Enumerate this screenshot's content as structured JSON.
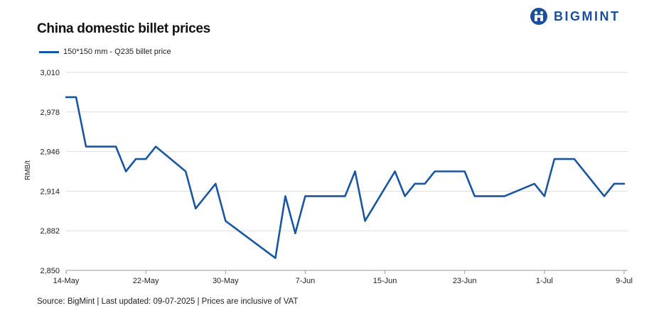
{
  "brand": {
    "name": "BIGMINT",
    "color": "#1a4f9c",
    "icon": "bigmint-logo-icon"
  },
  "footer": {
    "source": "Source: BigMint | Last updated: 09-07-2025 | Prices are inclusive of VAT"
  },
  "chart_data": {
    "type": "line",
    "title": "China domestic billet prices",
    "ylabel": "RMB/t",
    "xlabel": "",
    "ylim": [
      2850,
      3010
    ],
    "yticks": [
      "2,850",
      "2,882",
      "2,914",
      "2,946",
      "2,978",
      "3,010"
    ],
    "ytick_values": [
      2850,
      2882,
      2914,
      2946,
      2978,
      3010
    ],
    "xticks": [
      "14-May",
      "22-May",
      "30-May",
      "7-Jun",
      "15-Jun",
      "23-Jun",
      "1-Jul",
      "9-Jul"
    ],
    "xtick_dates": [
      "2025-05-14",
      "2025-05-22",
      "2025-05-30",
      "2025-06-07",
      "2025-06-15",
      "2025-06-23",
      "2025-07-01",
      "2025-07-09"
    ],
    "grid": "horizontal",
    "legend_position": "top-left",
    "series": [
      {
        "name": "150*150 mm - Q235 billet price",
        "color": "#1a56a0",
        "points": [
          [
            "2025-05-14",
            2990
          ],
          [
            "2025-05-15",
            2990
          ],
          [
            "2025-05-16",
            2950
          ],
          [
            "2025-05-19",
            2950
          ],
          [
            "2025-05-20",
            2930
          ],
          [
            "2025-05-21",
            2940
          ],
          [
            "2025-05-22",
            2940
          ],
          [
            "2025-05-23",
            2950
          ],
          [
            "2025-05-26",
            2930
          ],
          [
            "2025-05-27",
            2900
          ],
          [
            "2025-05-29",
            2920
          ],
          [
            "2025-05-30",
            2890
          ],
          [
            "2025-06-04",
            2860
          ],
          [
            "2025-06-05",
            2910
          ],
          [
            "2025-06-06",
            2880
          ],
          [
            "2025-06-07",
            2910
          ],
          [
            "2025-06-11",
            2910
          ],
          [
            "2025-06-12",
            2930
          ],
          [
            "2025-06-13",
            2890
          ],
          [
            "2025-06-16",
            2930
          ],
          [
            "2025-06-17",
            2910
          ],
          [
            "2025-06-18",
            2920
          ],
          [
            "2025-06-19",
            2920
          ],
          [
            "2025-06-20",
            2930
          ],
          [
            "2025-06-23",
            2930
          ],
          [
            "2025-06-24",
            2910
          ],
          [
            "2025-06-27",
            2910
          ],
          [
            "2025-06-30",
            2920
          ],
          [
            "2025-07-01",
            2910
          ],
          [
            "2025-07-02",
            2940
          ],
          [
            "2025-07-04",
            2940
          ],
          [
            "2025-07-07",
            2910
          ],
          [
            "2025-07-08",
            2920
          ],
          [
            "2025-07-09",
            2920
          ]
        ]
      }
    ]
  }
}
